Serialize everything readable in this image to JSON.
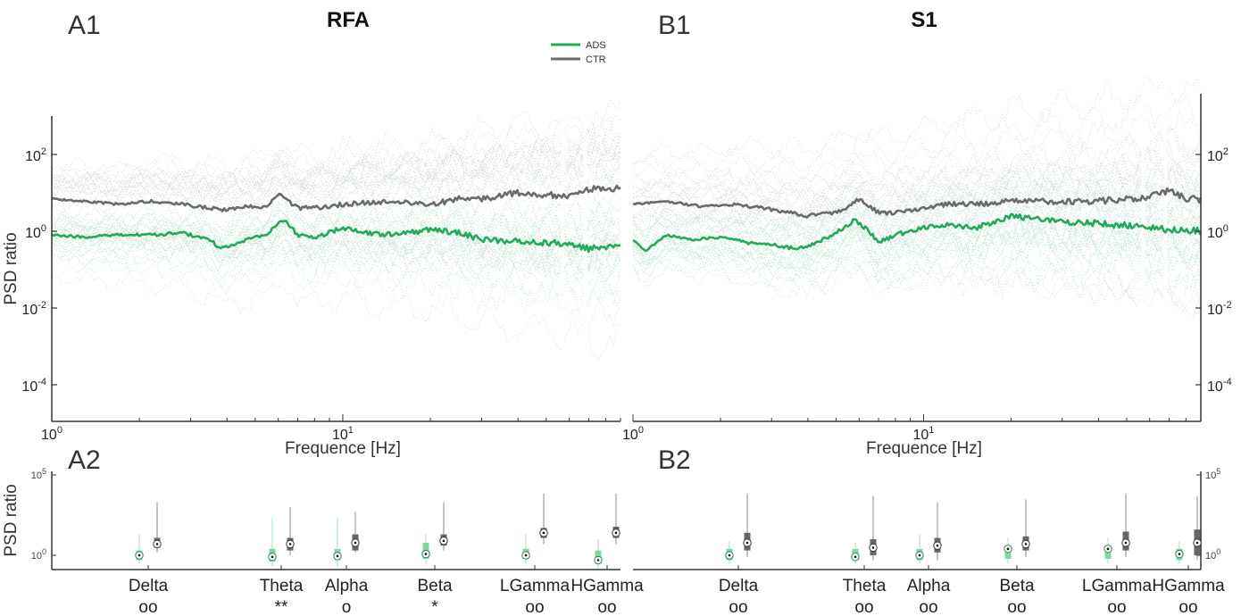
{
  "figure": {
    "panels": {
      "A1": "A1",
      "B1": "B1",
      "A2": "A2",
      "B2": "B2"
    },
    "titles": {
      "left": "RFA",
      "right": "S1"
    },
    "ylabel_partial": "PSD ratio",
    "xlabel": "Frequence [Hz]"
  },
  "legend": [
    {
      "name": "ADS",
      "color": "#22aa5a"
    },
    {
      "name": "CTR",
      "color": "#6b6b6b"
    }
  ],
  "colors": {
    "ads_line": "#22aa5a",
    "ads_shade": "#bfe6cf",
    "ctr_line": "#6b6b6b",
    "ctr_shade": "#d7d7d7",
    "ads_box": "#7fd8a3",
    "ctr_box": "#666666"
  },
  "chart_data": [
    {
      "type": "line",
      "panel": "A1",
      "title": "RFA",
      "xlabel": "Frequence [Hz]",
      "ylabel": "PSD ratio",
      "xscale": "log",
      "yscale": "log",
      "xlim": [
        1,
        90
      ],
      "ylim": [
        2e-05,
        2000
      ],
      "x_ticks": [
        "10^0",
        "10^1"
      ],
      "y_ticks": [
        "10^2",
        "10^0",
        "10^-2",
        "10^-4"
      ],
      "legend": "top-right",
      "series": [
        {
          "name": "ADS",
          "x": [
            1,
            1.3,
            1.7,
            2.2,
            2.8,
            3.5,
            3.8,
            4.5,
            5.5,
            6.3,
            7,
            8,
            10,
            12,
            15,
            20,
            25,
            30,
            40,
            50,
            60,
            70,
            80,
            90
          ],
          "y": [
            0.8,
            0.7,
            0.8,
            0.8,
            0.9,
            0.6,
            0.35,
            0.55,
            0.9,
            2.0,
            0.8,
            0.7,
            1.2,
            0.9,
            0.8,
            1.1,
            0.9,
            0.6,
            0.55,
            0.5,
            0.45,
            0.35,
            0.4,
            0.45
          ]
        },
        {
          "name": "CTR",
          "x": [
            1,
            1.3,
            1.7,
            2.2,
            2.8,
            3.5,
            4,
            4.8,
            5.5,
            6,
            7,
            8,
            10,
            12,
            15,
            20,
            25,
            30,
            40,
            50,
            60,
            70,
            80,
            90
          ],
          "y": [
            7,
            6,
            5,
            6,
            5,
            4,
            3.5,
            4.5,
            4,
            10,
            4,
            4,
            5,
            5.5,
            6,
            5,
            7,
            7,
            10,
            9,
            8,
            12,
            14,
            12
          ]
        }
      ]
    },
    {
      "type": "line",
      "panel": "B1",
      "title": "S1",
      "xlabel": "Frequence [Hz]",
      "ylabel": "PSD ratio",
      "xscale": "log",
      "yscale": "log",
      "xlim": [
        1,
        90
      ],
      "ylim": [
        2e-05,
        2000
      ],
      "x_ticks": [
        "10^0",
        "10^1"
      ],
      "y_ticks": [
        "10^2",
        "10^0",
        "10^-2",
        "10^-4"
      ],
      "series": [
        {
          "name": "ADS",
          "x": [
            1,
            1.1,
            1.3,
            1.6,
            2,
            2.5,
            3,
            3.6,
            4.2,
            5,
            5.8,
            6.5,
            7,
            8,
            10,
            12,
            15,
            20,
            25,
            30,
            40,
            50,
            60,
            70,
            80,
            90
          ],
          "y": [
            0.6,
            0.3,
            0.8,
            0.6,
            0.7,
            0.5,
            0.45,
            0.35,
            0.45,
            0.9,
            2.0,
            1.0,
            0.5,
            0.8,
            1.2,
            1.5,
            1.2,
            2.5,
            2.0,
            1.8,
            1.6,
            1.4,
            1.3,
            1.1,
            1.0,
            1.0
          ]
        },
        {
          "name": "CTR",
          "x": [
            1,
            1.3,
            1.7,
            2.2,
            2.8,
            3.5,
            4,
            4.8,
            5.5,
            6,
            7,
            8,
            10,
            12,
            15,
            20,
            25,
            30,
            40,
            50,
            60,
            70,
            80,
            90
          ],
          "y": [
            5,
            6,
            4.5,
            5,
            4,
            3,
            2.5,
            3,
            4,
            7,
            3,
            3,
            4,
            5,
            5,
            6,
            6,
            6,
            6,
            7,
            8,
            12,
            7,
            7
          ]
        }
      ]
    },
    {
      "type": "box",
      "panel": "A2",
      "ylabel": "PSD ratio",
      "yscale": "log",
      "ylim": [
        0.5,
        100000
      ],
      "y_ticks": [
        "10^5",
        "10^0"
      ],
      "categories": [
        "Delta",
        "Theta",
        "Alpha",
        "Beta",
        "LGamma",
        "HGamma"
      ],
      "significance": [
        "oo",
        "**",
        "o",
        "*",
        "oo",
        "oo"
      ],
      "series": [
        {
          "name": "ADS",
          "q1": [
            0.5,
            0.4,
            0.5,
            0.6,
            0.6,
            0.3
          ],
          "median": [
            1.0,
            0.8,
            0.9,
            1.2,
            1.0,
            0.5
          ],
          "q3": [
            2.0,
            2.5,
            2.5,
            6,
            2.5,
            2.0
          ],
          "whisker_low": [
            0.3,
            0.2,
            0.2,
            0.3,
            0.3,
            0.1
          ],
          "whisker_high": [
            20,
            200,
            200,
            20,
            20,
            10
          ]
        },
        {
          "name": "CTR",
          "q1": [
            3,
            2,
            2,
            4,
            12,
            12
          ],
          "median": [
            5,
            5,
            6,
            8,
            25,
            25
          ],
          "q3": [
            12,
            12,
            20,
            20,
            50,
            60
          ],
          "whisker_low": [
            1.5,
            1,
            1.5,
            2,
            5,
            5
          ],
          "whisker_high": [
            2000,
            1000,
            500,
            2000,
            7000,
            7000
          ]
        }
      ]
    },
    {
      "type": "box",
      "panel": "B2",
      "ylabel": "PSD ratio",
      "yscale": "log",
      "ylim": [
        0.5,
        100000
      ],
      "y_ticks": [
        "10^5",
        "10^0"
      ],
      "categories": [
        "Delta",
        "Theta",
        "Alpha",
        "Beta",
        "LGamma",
        "HGamma"
      ],
      "significance": [
        "oo",
        "oo",
        "oo",
        "oo",
        "oo",
        "oo"
      ],
      "series": [
        {
          "name": "ADS",
          "q1": [
            0.5,
            0.5,
            0.5,
            0.6,
            0.6,
            0.5
          ],
          "median": [
            1.0,
            0.8,
            1.0,
            2.5,
            2.5,
            1.2
          ],
          "q3": [
            2.5,
            2.5,
            2.5,
            3,
            3,
            2.5
          ],
          "whisker_low": [
            0.3,
            0.3,
            0.3,
            0.3,
            0.3,
            0.3
          ],
          "whisker_high": [
            8,
            6,
            20,
            12,
            12,
            8
          ]
        },
        {
          "name": "CTR",
          "q1": [
            2,
            1,
            1.5,
            2,
            2,
            1
          ],
          "median": [
            6,
            3,
            4,
            5,
            6,
            6
          ],
          "q3": [
            25,
            10,
            12,
            15,
            30,
            40
          ],
          "whisker_low": [
            0.8,
            0.5,
            0.5,
            0.8,
            0.8,
            0.5
          ],
          "whisker_high": [
            7000,
            5000,
            2000,
            3000,
            7000,
            5000
          ]
        }
      ]
    }
  ]
}
